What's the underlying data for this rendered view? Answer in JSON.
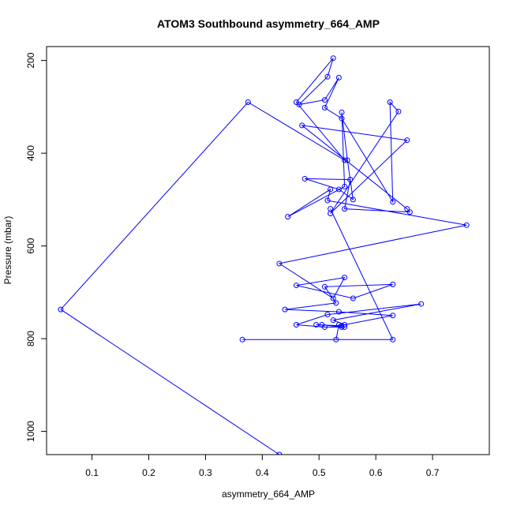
{
  "chart_data": {
    "type": "line",
    "title": "ATOM3 Southbound asymmetry_664_AMP",
    "xlabel": "asymmetry_664_AMP",
    "ylabel": "Pressure (mbar)",
    "xlim": [
      0.02,
      0.8
    ],
    "ylim": [
      1050,
      170
    ],
    "y_reversed": true,
    "x_ticks": [
      0.1,
      0.2,
      0.3,
      0.4,
      0.5,
      0.6,
      0.7
    ],
    "x_tick_labels": [
      "0.1",
      "0.2",
      "0.3",
      "0.4",
      "0.5",
      "0.6",
      "0.7"
    ],
    "y_ticks": [
      200,
      400,
      600,
      800,
      1000
    ],
    "y_tick_labels": [
      "200",
      "400",
      "600",
      "800",
      "1000"
    ],
    "grid": false,
    "series": [
      {
        "color": "#0000ff",
        "marker": "open-circle",
        "x": [
          0.43,
          0.045,
          0.375,
          0.545,
          0.46,
          0.525,
          0.515,
          0.465,
          0.51,
          0.535,
          0.51,
          0.54,
          0.63,
          0.625,
          0.64,
          0.52,
          0.655,
          0.47,
          0.655,
          0.66,
          0.545,
          0.555,
          0.475,
          0.535,
          0.56,
          0.55,
          0.54,
          0.545,
          0.445,
          0.52,
          0.515,
          0.76,
          0.43,
          0.525,
          0.545,
          0.46,
          0.56,
          0.63,
          0.51,
          0.53,
          0.44,
          0.535,
          0.63,
          0.545,
          0.525,
          0.68,
          0.515,
          0.46,
          0.51,
          0.54,
          0.505,
          0.495,
          0.54,
          0.545,
          0.535,
          0.53,
          0.365,
          0.63,
          0.52
        ],
        "y": [
          1050,
          737,
          290,
          415,
          290,
          195,
          235,
          295,
          285,
          237,
          302,
          325,
          505,
          290,
          310,
          530,
          372,
          340,
          520,
          527,
          520,
          457,
          455,
          478,
          500,
          415,
          312,
          472,
          537,
          478,
          502,
          555,
          638,
          713,
          668,
          685,
          713,
          683,
          688,
          723,
          737,
          742,
          750,
          770,
          760,
          725,
          748,
          770,
          775,
          775,
          770,
          770,
          772,
          775,
          770,
          802,
          802,
          802,
          520
        ]
      }
    ]
  }
}
